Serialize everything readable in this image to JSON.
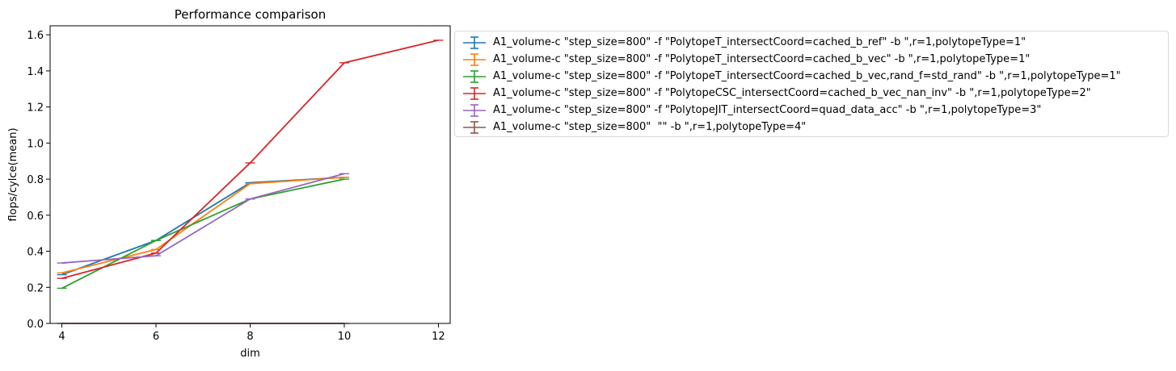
{
  "chart_data": {
    "type": "line",
    "title": "Performance comparison",
    "xlabel": "dim",
    "ylabel": "flops/cylce(mean)",
    "xlim": [
      3.75,
      12.25
    ],
    "ylim": [
      0.0,
      1.65
    ],
    "xticks": [
      4,
      6,
      8,
      10,
      12
    ],
    "yticks": [
      0.0,
      0.2,
      0.4,
      0.6,
      0.8,
      1.0,
      1.2,
      1.4,
      1.6
    ],
    "grid": false,
    "legend_position": "outside-right",
    "error_bars": true,
    "series": [
      {
        "name": "A1_volume-c \"step_size=800\" -f \"PolytopeT_intersectCoord=cached_b_ref\" -b \",r=1,polytopeType=1\"",
        "color": "#1f77b4",
        "x": [
          4,
          6,
          8,
          10
        ],
        "y": [
          0.27,
          0.46,
          0.78,
          0.81
        ]
      },
      {
        "name": "A1_volume-c \"step_size=800\" -f \"PolytopeT_intersectCoord=cached_b_vec\" -b \",r=1,polytopeType=1\"",
        "color": "#ff7f0e",
        "x": [
          4,
          6,
          8,
          10
        ],
        "y": [
          0.28,
          0.41,
          0.775,
          0.81
        ]
      },
      {
        "name": "A1_volume-c \"step_size=800\" -f \"PolytopeT_intersectCoord=cached_b_vec,rand_f=std_rand\" -b \",r=1,polytopeType=1\"",
        "color": "#2ca02c",
        "x": [
          4,
          6,
          8,
          10
        ],
        "y": [
          0.195,
          0.46,
          0.69,
          0.8
        ]
      },
      {
        "name": "A1_volume-c \"step_size=800\" -f \"PolytopeCSC_intersectCoord=cached_b_vec_nan_inv\" -b \",r=1,polytopeType=2\"",
        "color": "#d62728",
        "x": [
          4,
          6,
          8,
          10,
          12
        ],
        "y": [
          0.25,
          0.39,
          0.89,
          1.445,
          1.57
        ]
      },
      {
        "name": "A1_volume-c \"step_size=800\" -f \"PolytopeJIT_intersectCoord=quad_data_acc\" -b \",r=1,polytopeType=3\"",
        "color": "#9467bd",
        "x": [
          4,
          6,
          8,
          10
        ],
        "y": [
          0.335,
          0.375,
          0.69,
          0.83
        ]
      },
      {
        "name": "A1_volume-c \"step_size=800\"  \"\" -b \",r=1,polytopeType=4\"",
        "color": "#8c564b",
        "x": [
          4,
          6,
          8,
          10
        ],
        "y": [
          0.0,
          0.0,
          0.0,
          0.0
        ]
      }
    ]
  }
}
